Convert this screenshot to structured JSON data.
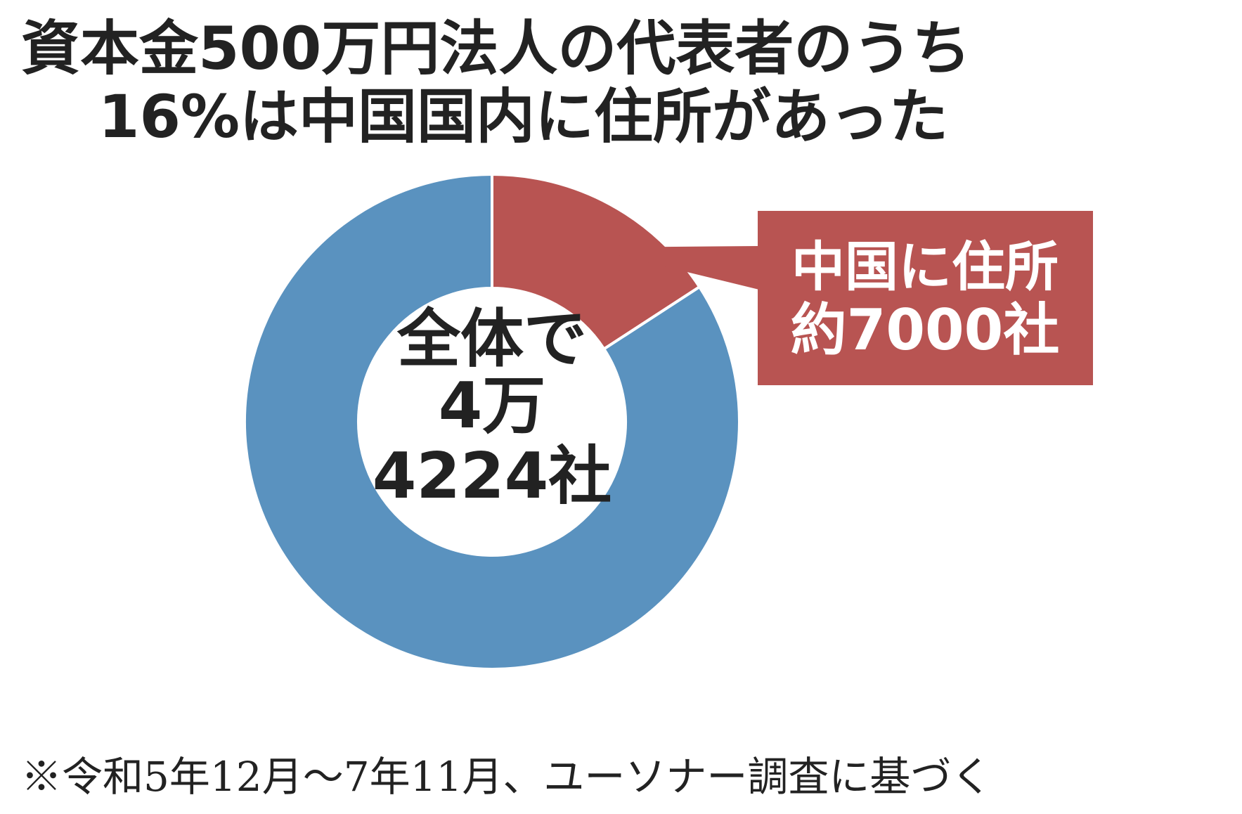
{
  "chart_data": {
    "type": "donut",
    "title": [
      "資本金500万円法人の代表者のうち",
      "16%は中国国内に住所があった"
    ],
    "categories": [
      "中国に住所",
      null
    ],
    "values": [
      7000,
      37224
    ],
    "value_labels": [
      "約7000社",
      null
    ],
    "colors": [
      "#b85452",
      "#5a92bf"
    ],
    "center_label": [
      "全体で",
      "4万",
      "4224社"
    ],
    "note": "※令和5年12月～7年11月、ユーソナー調査に基づく"
  }
}
